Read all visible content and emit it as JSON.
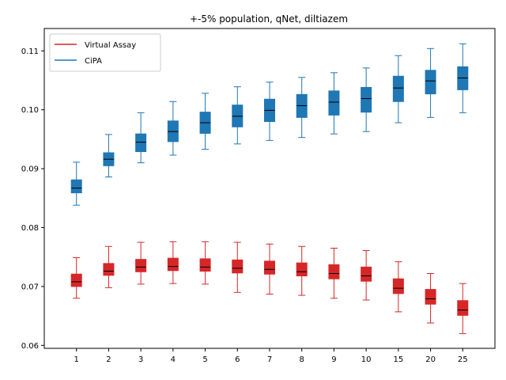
{
  "chart_data": {
    "type": "box",
    "title": "+-5% population, qNet, diltiazem",
    "xlabel": "",
    "ylabel": "",
    "categories": [
      "1",
      "2",
      "3",
      "4",
      "5",
      "6",
      "7",
      "8",
      "9",
      "10",
      "15",
      "20",
      "25"
    ],
    "ylim": [
      0.0595,
      0.1138
    ],
    "yticks": [
      0.06,
      0.07,
      0.08,
      0.09,
      0.1,
      0.11
    ],
    "ytick_labels": [
      "0.06",
      "0.07",
      "0.08",
      "0.09",
      "0.10",
      "0.11"
    ],
    "legend_position": "top-left",
    "grid": false,
    "series": [
      {
        "name": "Virtual Assay",
        "color": "#d62728",
        "boxes": [
          {
            "whislo": 0.068,
            "q1": 0.07,
            "med": 0.0708,
            "q3": 0.0721,
            "whishi": 0.0749
          },
          {
            "whislo": 0.0698,
            "q1": 0.0719,
            "med": 0.0726,
            "q3": 0.0739,
            "whishi": 0.0768
          },
          {
            "whislo": 0.0704,
            "q1": 0.0725,
            "med": 0.0733,
            "q3": 0.0746,
            "whishi": 0.0775
          },
          {
            "whislo": 0.0705,
            "q1": 0.0727,
            "med": 0.0734,
            "q3": 0.0748,
            "whishi": 0.0776
          },
          {
            "whislo": 0.0704,
            "q1": 0.0726,
            "med": 0.0733,
            "q3": 0.0747,
            "whishi": 0.0776
          },
          {
            "whislo": 0.069,
            "q1": 0.0723,
            "med": 0.0731,
            "q3": 0.0745,
            "whishi": 0.0775
          },
          {
            "whislo": 0.0687,
            "q1": 0.0721,
            "med": 0.0729,
            "q3": 0.0743,
            "whishi": 0.0772
          },
          {
            "whislo": 0.0685,
            "q1": 0.0718,
            "med": 0.0725,
            "q3": 0.074,
            "whishi": 0.0768
          },
          {
            "whislo": 0.068,
            "q1": 0.0713,
            "med": 0.0722,
            "q3": 0.0737,
            "whishi": 0.0765
          },
          {
            "whislo": 0.0677,
            "q1": 0.0709,
            "med": 0.0718,
            "q3": 0.0733,
            "whishi": 0.0761
          },
          {
            "whislo": 0.0657,
            "q1": 0.0688,
            "med": 0.0697,
            "q3": 0.0713,
            "whishi": 0.0742
          },
          {
            "whislo": 0.0638,
            "q1": 0.067,
            "med": 0.0679,
            "q3": 0.0695,
            "whishi": 0.0722
          },
          {
            "whislo": 0.062,
            "q1": 0.0651,
            "med": 0.066,
            "q3": 0.0676,
            "whishi": 0.0705
          }
        ]
      },
      {
        "name": "CiPA",
        "color": "#1f77b4",
        "boxes": [
          {
            "whislo": 0.0838,
            "q1": 0.0859,
            "med": 0.0867,
            "q3": 0.0881,
            "whishi": 0.0911
          },
          {
            "whislo": 0.0886,
            "q1": 0.0905,
            "med": 0.0916,
            "q3": 0.0927,
            "whishi": 0.0958
          },
          {
            "whislo": 0.091,
            "q1": 0.0929,
            "med": 0.0945,
            "q3": 0.0959,
            "whishi": 0.0995
          },
          {
            "whislo": 0.0923,
            "q1": 0.0946,
            "med": 0.0963,
            "q3": 0.0981,
            "whishi": 0.1014
          },
          {
            "whislo": 0.0933,
            "q1": 0.096,
            "med": 0.0978,
            "q3": 0.0996,
            "whishi": 0.1028
          },
          {
            "whislo": 0.0942,
            "q1": 0.0971,
            "med": 0.0989,
            "q3": 0.1008,
            "whishi": 0.1039
          },
          {
            "whislo": 0.0948,
            "q1": 0.098,
            "med": 0.0999,
            "q3": 0.1018,
            "whishi": 0.1047
          },
          {
            "whislo": 0.0953,
            "q1": 0.0987,
            "med": 0.1007,
            "q3": 0.1026,
            "whishi": 0.1055
          },
          {
            "whislo": 0.0959,
            "q1": 0.0991,
            "med": 0.1013,
            "q3": 0.1032,
            "whishi": 0.1063
          },
          {
            "whislo": 0.0963,
            "q1": 0.0996,
            "med": 0.1019,
            "q3": 0.1038,
            "whishi": 0.1071
          },
          {
            "whislo": 0.0978,
            "q1": 0.1014,
            "med": 0.1037,
            "q3": 0.1057,
            "whishi": 0.1092
          },
          {
            "whislo": 0.0987,
            "q1": 0.1027,
            "med": 0.1049,
            "q3": 0.1067,
            "whishi": 0.1104
          },
          {
            "whislo": 0.0995,
            "q1": 0.1034,
            "med": 0.1054,
            "q3": 0.1073,
            "whishi": 0.1112
          }
        ]
      }
    ]
  }
}
